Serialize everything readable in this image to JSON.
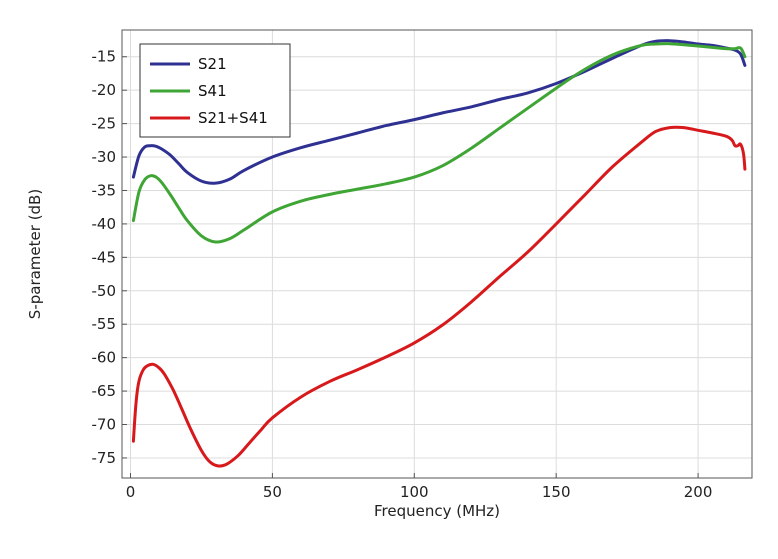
{
  "chart_data": {
    "type": "line",
    "title": "",
    "xlabel": "Frequency (MHz)",
    "ylabel": "S-parameter (dB)",
    "xlim": [
      -3,
      219
    ],
    "ylim": [
      -78,
      -11
    ],
    "xticks": [
      0,
      50,
      100,
      150,
      200
    ],
    "yticks": [
      -15,
      -20,
      -25,
      -30,
      -35,
      -40,
      -45,
      -50,
      -55,
      -60,
      -65,
      -70,
      -75
    ],
    "grid": true,
    "legend_position": "top-left",
    "series": [
      {
        "name": "S21",
        "color": "#2e3192",
        "x": [
          1,
          3,
          5,
          7,
          9,
          11,
          14,
          17,
          20,
          25,
          30,
          35,
          40,
          50,
          60,
          70,
          80,
          90,
          100,
          110,
          120,
          130,
          140,
          150,
          160,
          170,
          180,
          185,
          190,
          195,
          200,
          205,
          210,
          213,
          215,
          216.5
        ],
        "y": [
          -33,
          -29.8,
          -28.5,
          -28.3,
          -28.4,
          -28.8,
          -29.7,
          -31,
          -32.3,
          -33.6,
          -33.9,
          -33.3,
          -32,
          -30,
          -28.6,
          -27.5,
          -26.4,
          -25.3,
          -24.4,
          -23.4,
          -22.5,
          -21.4,
          -20.4,
          -19,
          -17.2,
          -15.2,
          -13.3,
          -12.7,
          -12.6,
          -12.8,
          -13.1,
          -13.3,
          -13.7,
          -14,
          -14.6,
          -16.3
        ]
      },
      {
        "name": "S41",
        "color": "#3fa535",
        "x": [
          1,
          3,
          5,
          7,
          9,
          11,
          14,
          17,
          20,
          25,
          30,
          35,
          40,
          50,
          60,
          70,
          80,
          90,
          100,
          110,
          120,
          130,
          140,
          150,
          160,
          170,
          180,
          185,
          190,
          195,
          200,
          205,
          210,
          213,
          215,
          216.5
        ],
        "y": [
          -39.5,
          -35.2,
          -33.4,
          -32.8,
          -33,
          -33.8,
          -35.6,
          -37.6,
          -39.5,
          -41.8,
          -42.7,
          -42.2,
          -40.9,
          -38.2,
          -36.6,
          -35.6,
          -34.8,
          -34,
          -33,
          -31.3,
          -28.7,
          -25.7,
          -22.7,
          -19.7,
          -16.9,
          -14.7,
          -13.3,
          -13.1,
          -13.05,
          -13.2,
          -13.4,
          -13.6,
          -13.8,
          -13.8,
          -13.7,
          -15
        ]
      },
      {
        "name": "S21+S41",
        "color": "#d7191c",
        "x": [
          1,
          2,
          3,
          4.5,
          6,
          8,
          10,
          12,
          15,
          18,
          21,
          25,
          28,
          31,
          34,
          38,
          42,
          46,
          50,
          60,
          70,
          80,
          90,
          100,
          110,
          120,
          130,
          140,
          150,
          160,
          170,
          180,
          185,
          190,
          195,
          200,
          205,
          210,
          212,
          213,
          214,
          215,
          216,
          216.5
        ],
        "y": [
          -72.5,
          -66.5,
          -63.5,
          -61.8,
          -61.2,
          -61,
          -61.5,
          -62.5,
          -64.8,
          -67.6,
          -70.5,
          -73.9,
          -75.6,
          -76.2,
          -75.9,
          -74.6,
          -72.7,
          -70.8,
          -69,
          -65.9,
          -63.6,
          -61.8,
          -59.9,
          -57.8,
          -55.1,
          -51.7,
          -47.9,
          -44.2,
          -40,
          -35.7,
          -31.4,
          -27.8,
          -26.2,
          -25.6,
          -25.6,
          -26,
          -26.4,
          -26.9,
          -27.5,
          -28.3,
          -28.3,
          -28.1,
          -29.5,
          -31.8
        ]
      }
    ]
  }
}
